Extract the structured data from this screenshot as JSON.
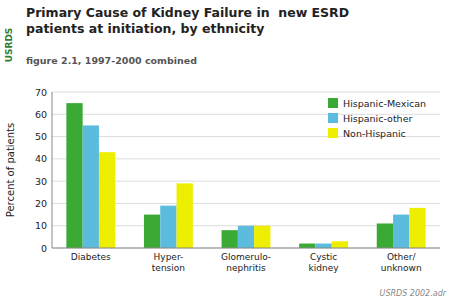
{
  "chart_data": {
    "type": "bar",
    "title": "Primary Cause of Kidney Failure in  new ESRD\npatients at initiation, by ethnicity",
    "subtitle": "figure 2.1, 1997-2000 combined",
    "categories": [
      "Diabetes",
      "Hyper-\ntension",
      "Glomerulo-\nnephritis",
      "Cystic\nkidney",
      "Other/\nunknown"
    ],
    "series": [
      {
        "name": "Hispanic-Mexican",
        "color": "#3aaa35",
        "values": [
          65,
          15,
          8,
          2,
          11
        ]
      },
      {
        "name": "Hispanic-other",
        "color": "#5bbcdd",
        "values": [
          55,
          19,
          10,
          2,
          15
        ]
      },
      {
        "name": "Non-Hispanic",
        "color": "#eeee00",
        "values": [
          43,
          29,
          10,
          3,
          18
        ]
      }
    ],
    "y_label": "Percent of patients",
    "ylim": [
      0,
      70
    ],
    "yticks": [
      0,
      10,
      20,
      30,
      40,
      50,
      60,
      70
    ],
    "grid": true,
    "legend": "upper right",
    "annotations": [
      "USRDS",
      "USRDS 2002.adr"
    ]
  }
}
